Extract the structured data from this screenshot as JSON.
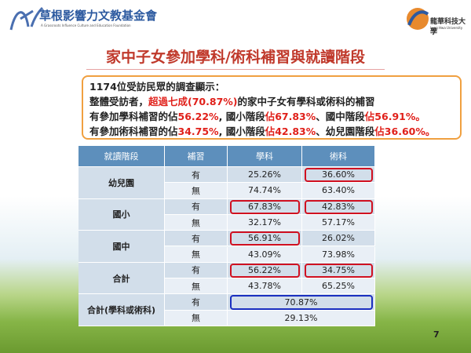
{
  "header": {
    "org_name": "草根影響力文教基金會",
    "org_subtitle": "A Grassroots Influence Culture and Education Foundation",
    "university_name": "龍華科技大學",
    "university_subtitle": "Lung Hwa University"
  },
  "title": "家中子女參加學科/術科補習與就讀階段",
  "summary": {
    "lines": [
      [
        {
          "text": "1174位受訪民眾的調查顯示："
        }
      ],
      [
        {
          "text": "整體受訪者，"
        },
        {
          "text": "超過七成(70.87%)",
          "red": true
        },
        {
          "text": "的家中子女有學科或術科的補習"
        }
      ],
      [
        {
          "text": "有參加學科補習的佔"
        },
        {
          "text": "56.22%",
          "red": true
        },
        {
          "text": ", 國小階段"
        },
        {
          "text": "佔67.83%",
          "red": true
        },
        {
          "text": "、國中階段"
        },
        {
          "text": "佔56.91%。",
          "red": true
        }
      ],
      [
        {
          "text": "有參加術科補習的佔"
        },
        {
          "text": "34.75%",
          "red": true
        },
        {
          "text": ", 國小階段"
        },
        {
          "text": "佔42.83%",
          "red": true
        },
        {
          "text": "、幼兒園階段"
        },
        {
          "text": "佔36.60%。",
          "red": true
        }
      ]
    ]
  },
  "table": {
    "header": [
      "就讀階段",
      "補習",
      "學科",
      "術科"
    ],
    "groups": [
      {
        "stage": "幼兒園",
        "rows": [
          [
            "有",
            "25.26%",
            "36.60%"
          ],
          [
            "無",
            "74.74%",
            "63.40%"
          ]
        ]
      },
      {
        "stage": "國小",
        "rows": [
          [
            "有",
            "67.83%",
            "42.83%"
          ],
          [
            "無",
            "32.17%",
            "57.17%"
          ]
        ]
      },
      {
        "stage": "國中",
        "rows": [
          [
            "有",
            "56.91%",
            "26.02%"
          ],
          [
            "無",
            "43.09%",
            "73.98%"
          ]
        ]
      },
      {
        "stage": "合計",
        "rows": [
          [
            "有",
            "56.22%",
            "34.75%"
          ],
          [
            "無",
            "43.78%",
            "65.25%"
          ]
        ]
      },
      {
        "stage": "合計(學科或術科)",
        "rows": [
          [
            "有",
            "70.87%"
          ],
          [
            "無",
            "29.13%"
          ]
        ]
      }
    ]
  },
  "page_number": "7"
}
